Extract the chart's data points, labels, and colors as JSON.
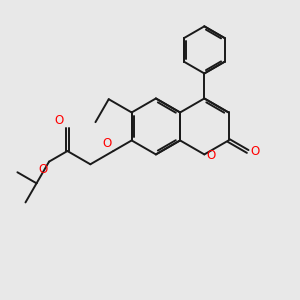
{
  "bg_color": "#e8e8e8",
  "bond_color": "#1a1a1a",
  "oxygen_color": "#ff0000",
  "lw": 1.4,
  "figsize": [
    3.0,
    3.0
  ],
  "dpi": 100,
  "xlim": [
    0,
    10
  ],
  "ylim": [
    0,
    10
  ],
  "ra": 0.95,
  "rp": 0.8
}
